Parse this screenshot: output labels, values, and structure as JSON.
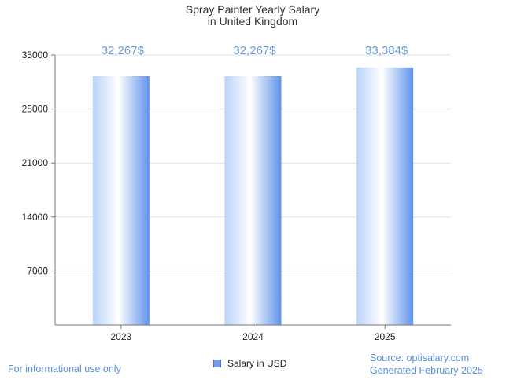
{
  "chart_data": {
    "type": "bar",
    "title": [
      "Spray Painter Yearly Salary",
      "in United Kingdom"
    ],
    "categories": [
      "2023",
      "2024",
      "2025"
    ],
    "series": [
      {
        "name": "Salary in USD",
        "values": [
          32267,
          32267,
          33384
        ]
      }
    ],
    "data_labels": [
      "32,267$",
      "32,267$",
      "33,384$"
    ],
    "yticks": [
      7000,
      14000,
      21000,
      28000,
      35000
    ],
    "ylim": [
      0,
      35000
    ],
    "grid": true,
    "legend_position": "bottom-center",
    "colors": {
      "bar_light": "#ffffff",
      "bar_mid": "#c8dcfb",
      "bar_dark": "#5f92ea",
      "label": "#6a9bd8"
    }
  },
  "footer": {
    "disclaimer": "For informational use only",
    "source": "Source: optisalary.com",
    "generated": "Generated February 2025"
  }
}
